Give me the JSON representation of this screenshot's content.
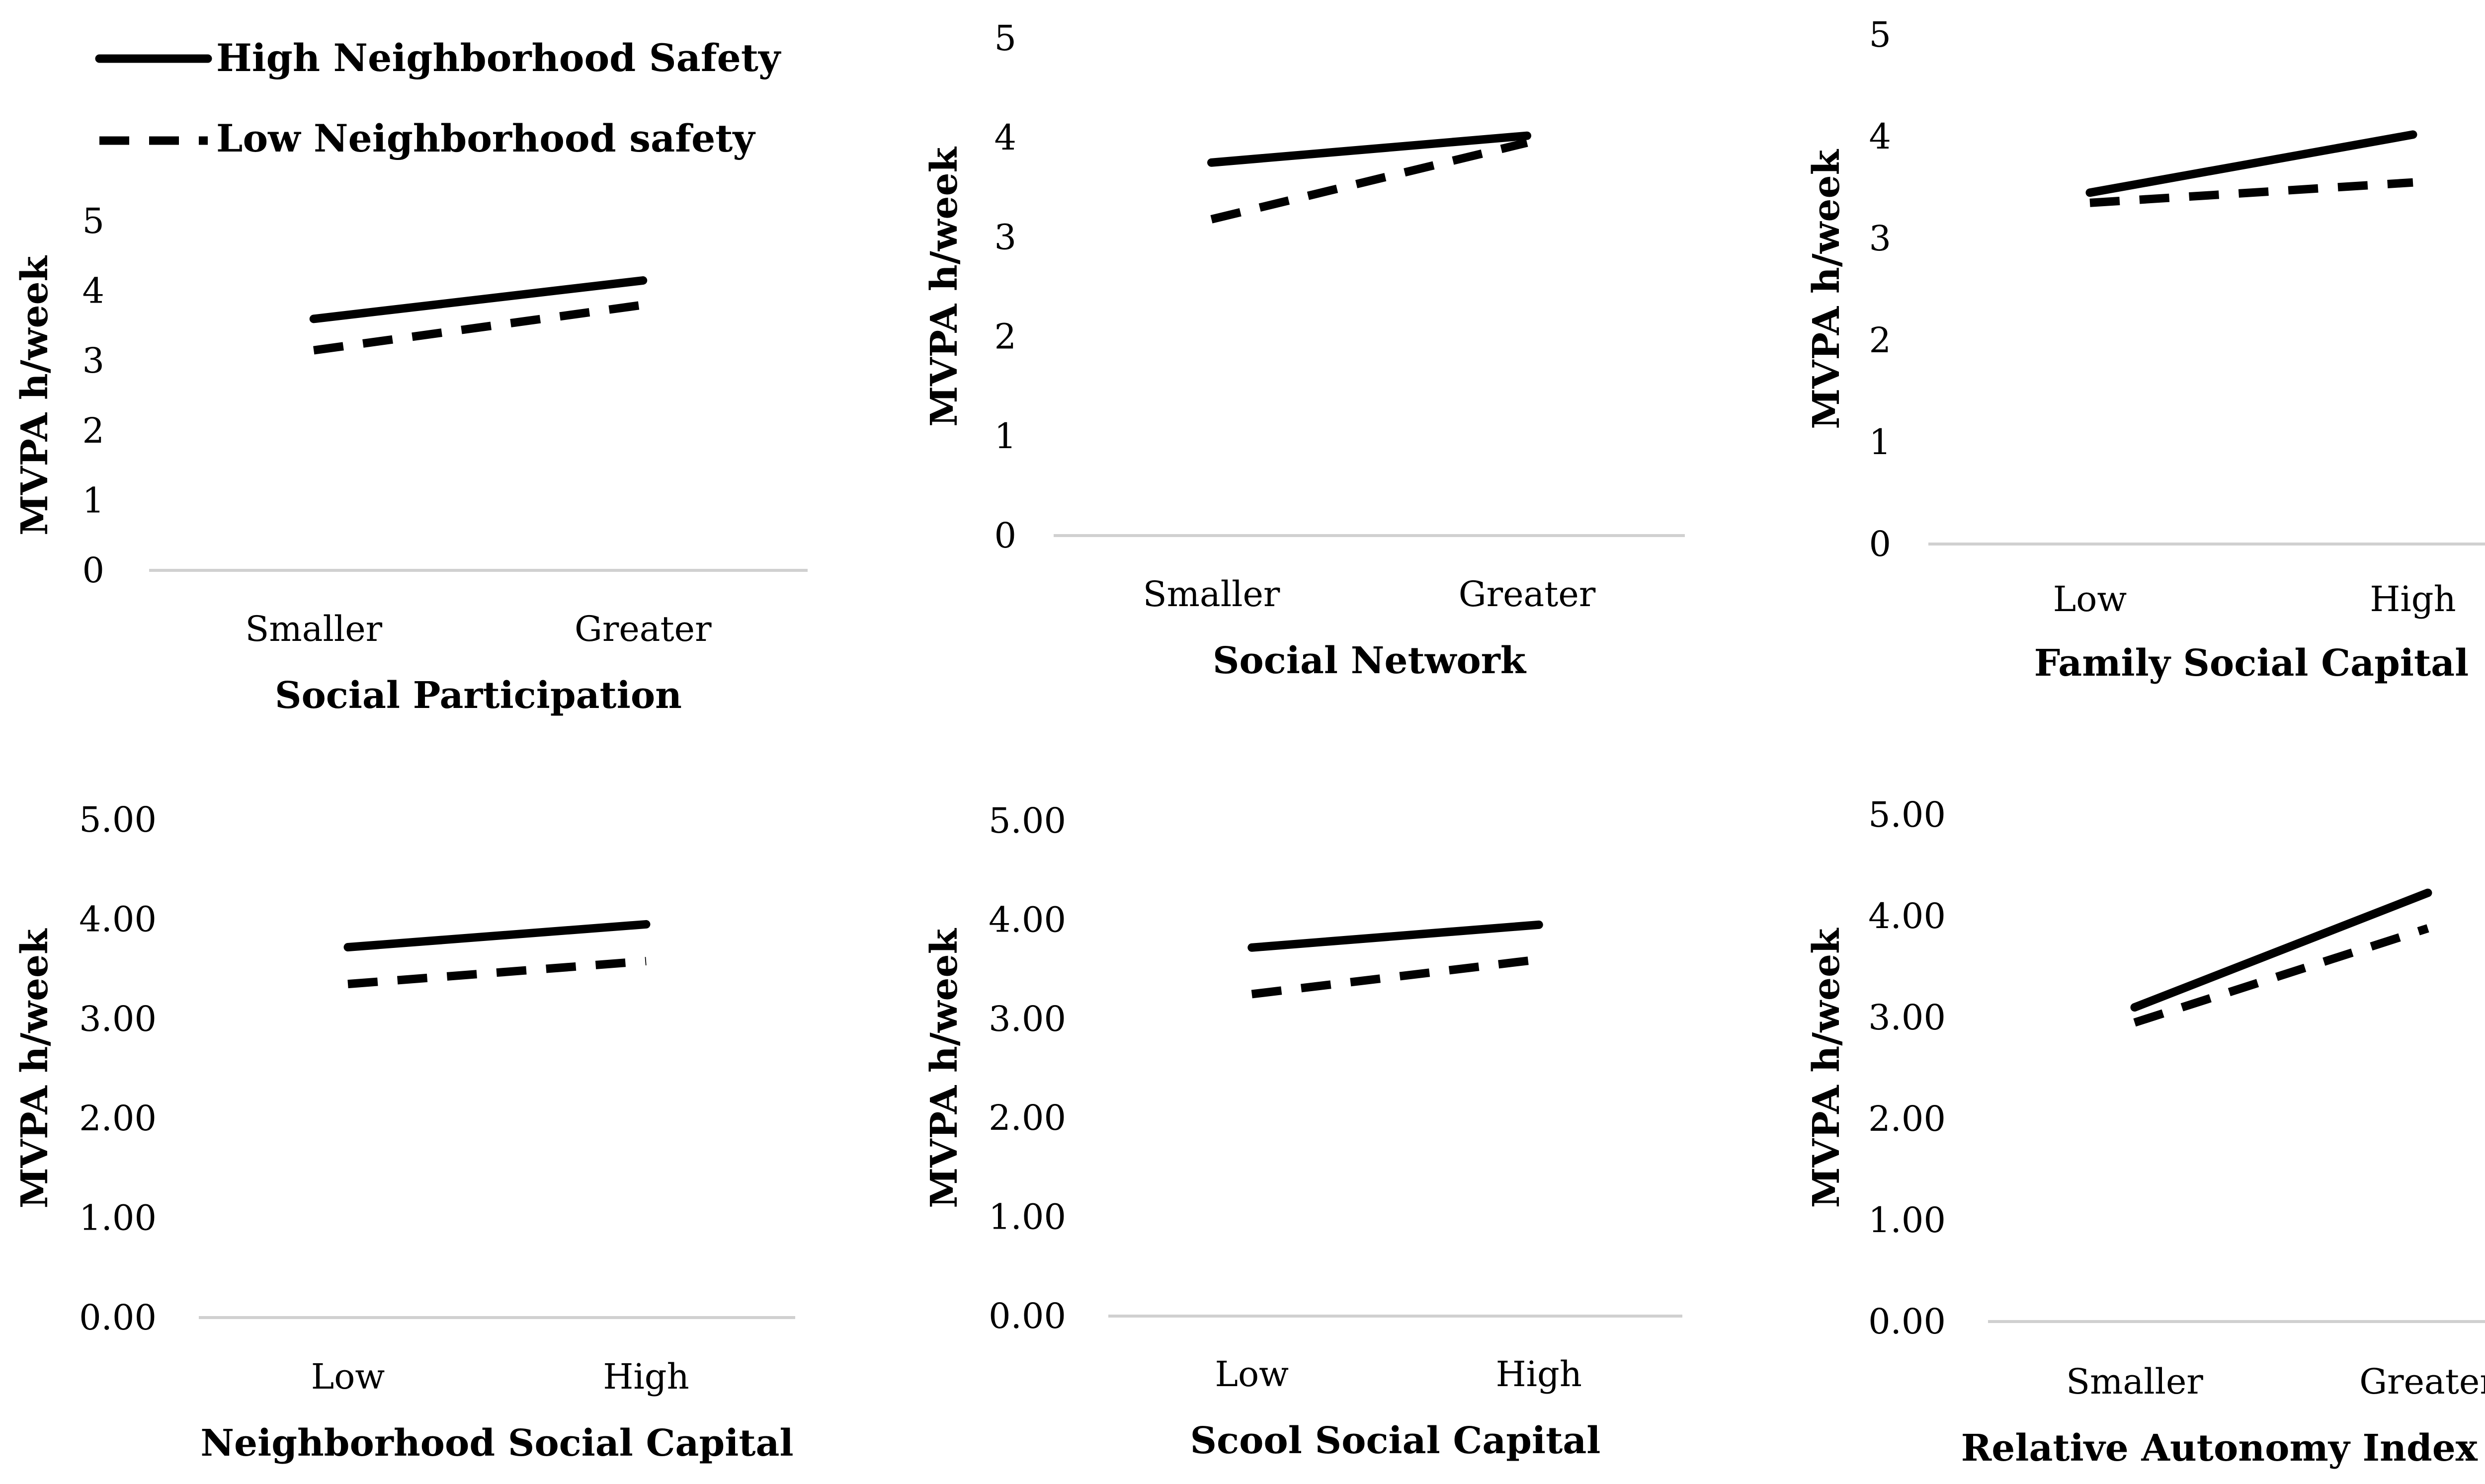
{
  "legend": {
    "items": [
      {
        "label": "High Neighborhood Safety",
        "style": "solid"
      },
      {
        "label": "Low Neighborhood safety",
        "style": "dashed"
      }
    ]
  },
  "chart_data": [
    {
      "type": "line",
      "xlabel": "Social Participation",
      "ylabel": "MVPA h/week",
      "categories": [
        "Smaller",
        "Greater"
      ],
      "yticks": [
        "0",
        "1",
        "2",
        "3",
        "4",
        "5"
      ],
      "ylim": [
        0,
        5
      ],
      "series": [
        {
          "name": "High Neighborhood Safety",
          "style": "solid",
          "values": [
            3.6,
            4.15
          ]
        },
        {
          "name": "Low Neighborhood safety",
          "style": "dashed",
          "values": [
            3.15,
            3.8
          ]
        }
      ]
    },
    {
      "type": "line",
      "xlabel": "Social Network",
      "ylabel": "MVPA h/week",
      "categories": [
        "Smaller",
        "Greater"
      ],
      "yticks": [
        "0",
        "1",
        "2",
        "3",
        "4",
        "5"
      ],
      "ylim": [
        0,
        5
      ],
      "series": [
        {
          "name": "High Neighborhood Safety",
          "style": "solid",
          "values": [
            3.75,
            4.02
          ]
        },
        {
          "name": "Low Neighborhood safety",
          "style": "dashed",
          "values": [
            3.18,
            3.95
          ]
        }
      ]
    },
    {
      "type": "line",
      "xlabel": "Family Social Capital",
      "ylabel": "MVPA h/week",
      "categories": [
        "Low",
        "High"
      ],
      "yticks": [
        "0",
        "1",
        "2",
        "3",
        "4",
        "5"
      ],
      "ylim": [
        0,
        5
      ],
      "series": [
        {
          "name": "High Neighborhood Safety",
          "style": "solid",
          "values": [
            3.45,
            4.02
          ]
        },
        {
          "name": "Low Neighborhood safety",
          "style": "dashed",
          "values": [
            3.35,
            3.55
          ]
        }
      ]
    },
    {
      "type": "line",
      "xlabel": "Neighborhood Social Capital",
      "ylabel": "MVPA h/week",
      "categories": [
        "Low",
        "High"
      ],
      "yticks": [
        "0.00",
        "1.00",
        "2.00",
        "3.00",
        "4.00",
        "5.00"
      ],
      "ylim": [
        0,
        5
      ],
      "series": [
        {
          "name": "High Neighborhood Safety",
          "style": "solid",
          "values": [
            3.72,
            3.95
          ]
        },
        {
          "name": "Low Neighborhood safety",
          "style": "dashed",
          "values": [
            3.35,
            3.58
          ]
        }
      ]
    },
    {
      "type": "line",
      "xlabel": "Scool Social Capital",
      "ylabel": "MVPA h/week",
      "categories": [
        "Low",
        "High"
      ],
      "yticks": [
        "0.00",
        "1.00",
        "2.00",
        "3.00",
        "4.00",
        "5.00"
      ],
      "ylim": [
        0,
        5
      ],
      "series": [
        {
          "name": "High Neighborhood Safety",
          "style": "solid",
          "values": [
            3.72,
            3.95
          ]
        },
        {
          "name": "Low Neighborhood safety",
          "style": "dashed",
          "values": [
            3.25,
            3.6
          ]
        }
      ]
    },
    {
      "type": "line",
      "xlabel": "Relative Autonomy Index (RAI)",
      "ylabel": "MVPA h/week",
      "categories": [
        "Smaller",
        "Greater"
      ],
      "yticks": [
        "0.00",
        "1.00",
        "2.00",
        "3.00",
        "4.00",
        "5.00"
      ],
      "ylim": [
        0,
        5
      ],
      "series": [
        {
          "name": "High Neighborhood Safety",
          "style": "solid",
          "values": [
            3.1,
            4.23
          ]
        },
        {
          "name": "Low Neighborhood safety",
          "style": "dashed",
          "values": [
            2.95,
            3.88
          ]
        }
      ]
    }
  ]
}
